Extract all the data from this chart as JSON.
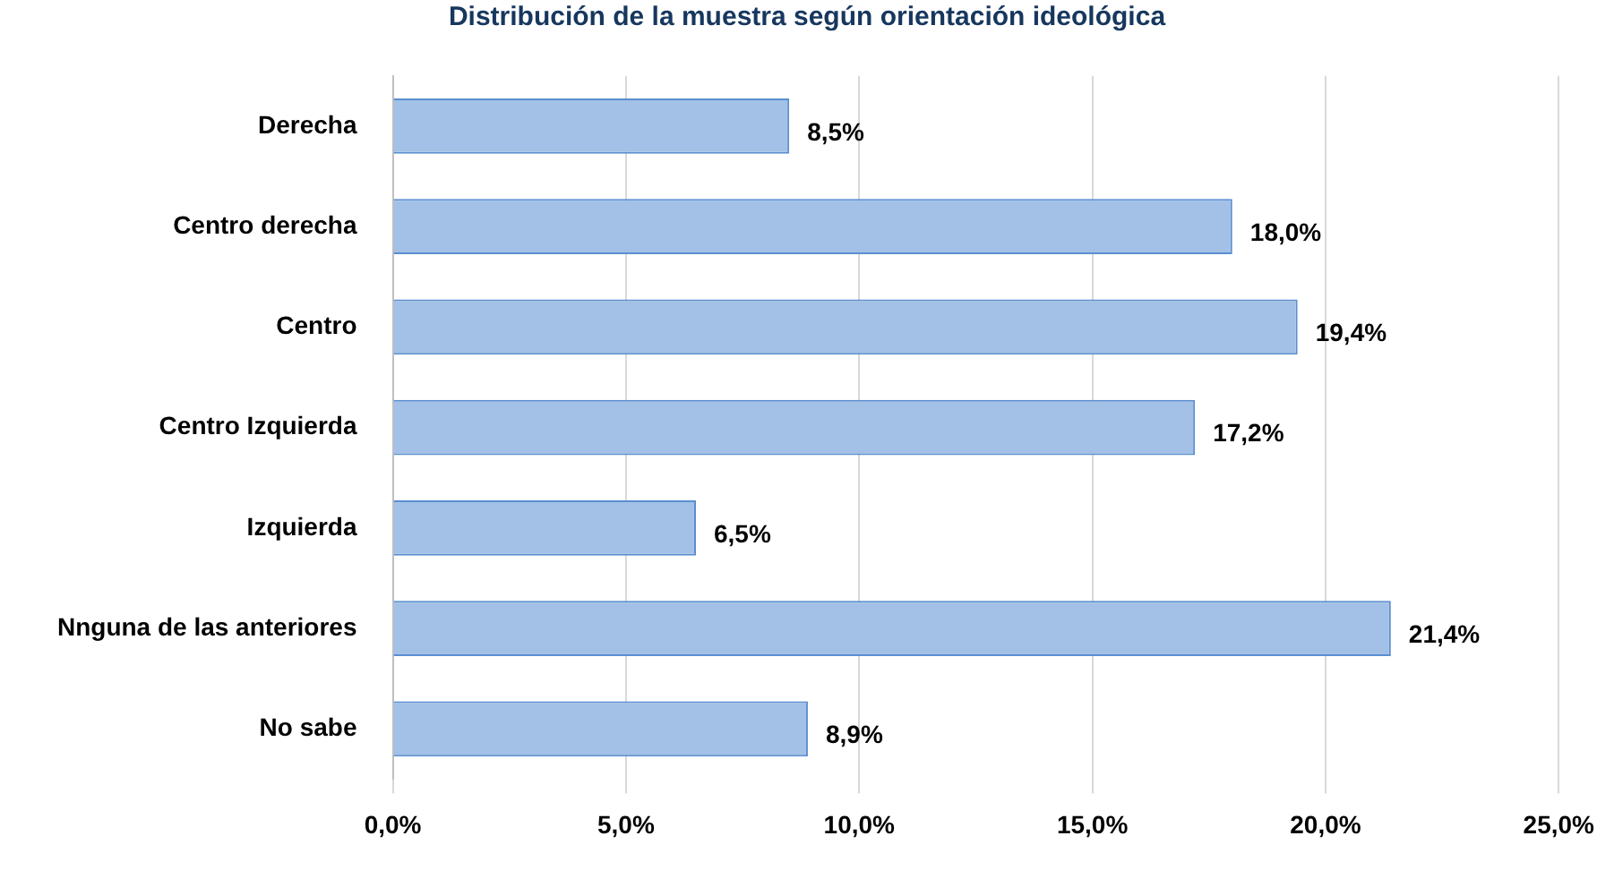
{
  "chart_data": {
    "type": "bar",
    "orientation": "horizontal",
    "title": "Distribución de la muestra según orientación ideológica",
    "categories": [
      "Derecha",
      "Centro derecha",
      "Centro",
      "Centro Izquierda",
      "Izquierda",
      "Nnguna de las anteriores",
      "No sabe"
    ],
    "values": [
      8.5,
      18.0,
      19.4,
      17.2,
      6.5,
      21.4,
      8.9
    ],
    "value_labels": [
      "8,5%",
      "18,0%",
      "19,4%",
      "17,2%",
      "6,5%",
      "21,4%",
      "8,9%"
    ],
    "color": "#a3c0e6",
    "xlim": [
      0,
      25
    ],
    "xticks": [
      {
        "value": 0,
        "label": "0,0%"
      },
      {
        "value": 5,
        "label": "5,0%"
      },
      {
        "value": 10,
        "label": "10,0%"
      },
      {
        "value": 15,
        "label": "15,0%"
      },
      {
        "value": 20,
        "label": "20,0%"
      },
      {
        "value": 25,
        "label": "25,0%"
      }
    ],
    "grid": "x",
    "legend": false
  }
}
